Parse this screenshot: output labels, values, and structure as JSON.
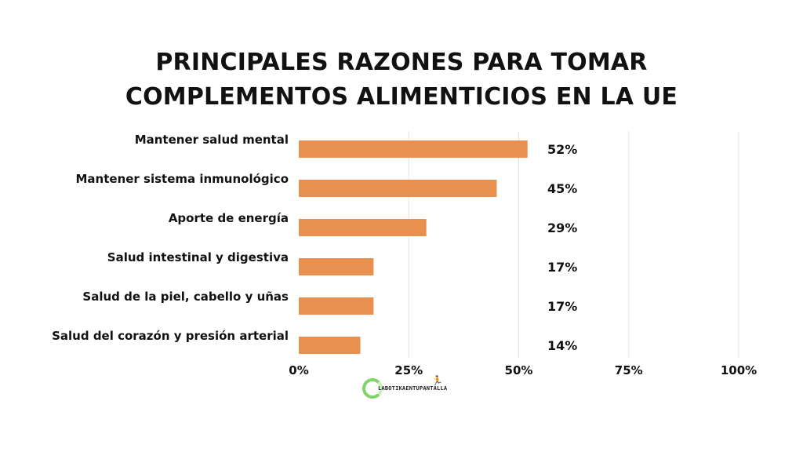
{
  "chart_data": {
    "type": "bar",
    "orientation": "horizontal",
    "title_lines": [
      "PRINCIPALES RAZONES PARA TOMAR",
      "COMPLEMENTOS ALIMENTICIOS EN LA UE"
    ],
    "categories": [
      "Mantener salud mental",
      "Mantener sistema inmunológico",
      "Aporte de energía",
      "Salud intestinal y digestiva",
      "Salud de la piel, cabello y uñas",
      "Salud del corazón y presión arterial"
    ],
    "values": [
      52,
      45,
      29,
      17,
      17,
      14
    ],
    "value_labels": [
      "52%",
      "45%",
      "29%",
      "17%",
      "17%",
      "14%"
    ],
    "xlim": [
      0,
      100
    ],
    "x_ticks": [
      0,
      25,
      50,
      75,
      100
    ],
    "x_tick_labels": [
      "0%",
      "25%",
      "50%",
      "75%",
      "100%"
    ],
    "grid": true,
    "bar_color": "#e8914f",
    "grid_color": "#e3e3e3"
  },
  "watermark": {
    "text": "LABOTIKAENTUPANTALLA",
    "icon": "runner-icon",
    "color": "#7fd36a"
  }
}
